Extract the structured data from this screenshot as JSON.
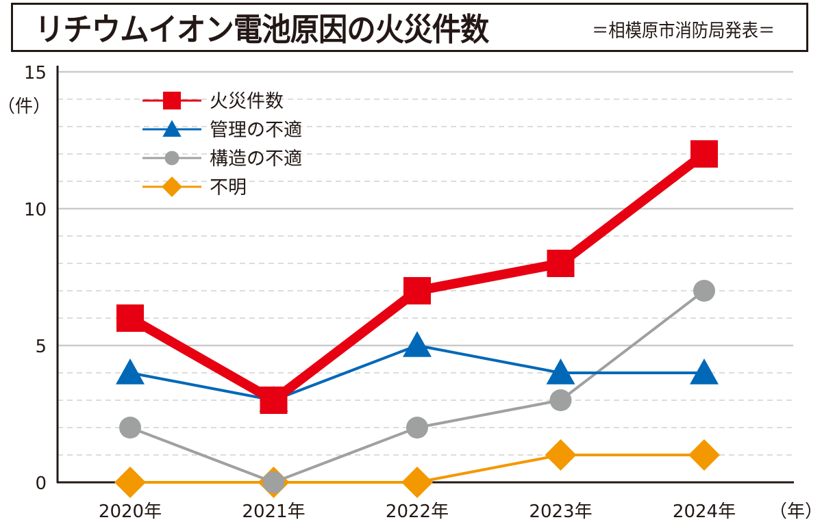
{
  "header": {
    "title": "リチウムイオン電池原因の火災件数",
    "source": "＝相模原市消防局発表＝"
  },
  "chart_data": {
    "type": "line",
    "title": "リチウムイオン電池原因の火災件数",
    "subtitle": "＝相模原市消防局発表＝",
    "xlabel": "（年）",
    "ylabel": "（件）",
    "categories": [
      "2020年",
      "2021年",
      "2022年",
      "2023年",
      "2024年"
    ],
    "ylim": [
      0,
      15
    ],
    "yticks": [
      0,
      5,
      10,
      15
    ],
    "grid": "horizontal, solid at major ticks, dashed at every 1",
    "legend_position": "top-left",
    "series": [
      {
        "name": "火災件数",
        "color": "#e60012",
        "marker": "square",
        "values": [
          6,
          3,
          7,
          8,
          12
        ]
      },
      {
        "name": "管理の不適",
        "color": "#0068b7",
        "marker": "triangle",
        "values": [
          4,
          3,
          5,
          4,
          4
        ]
      },
      {
        "name": "構造の不適",
        "color": "#9fa0a0",
        "marker": "circle",
        "values": [
          2,
          0,
          2,
          3,
          7
        ]
      },
      {
        "name": "不明",
        "color": "#f39800",
        "marker": "diamond",
        "values": [
          0,
          0,
          0,
          1,
          1
        ]
      }
    ]
  }
}
